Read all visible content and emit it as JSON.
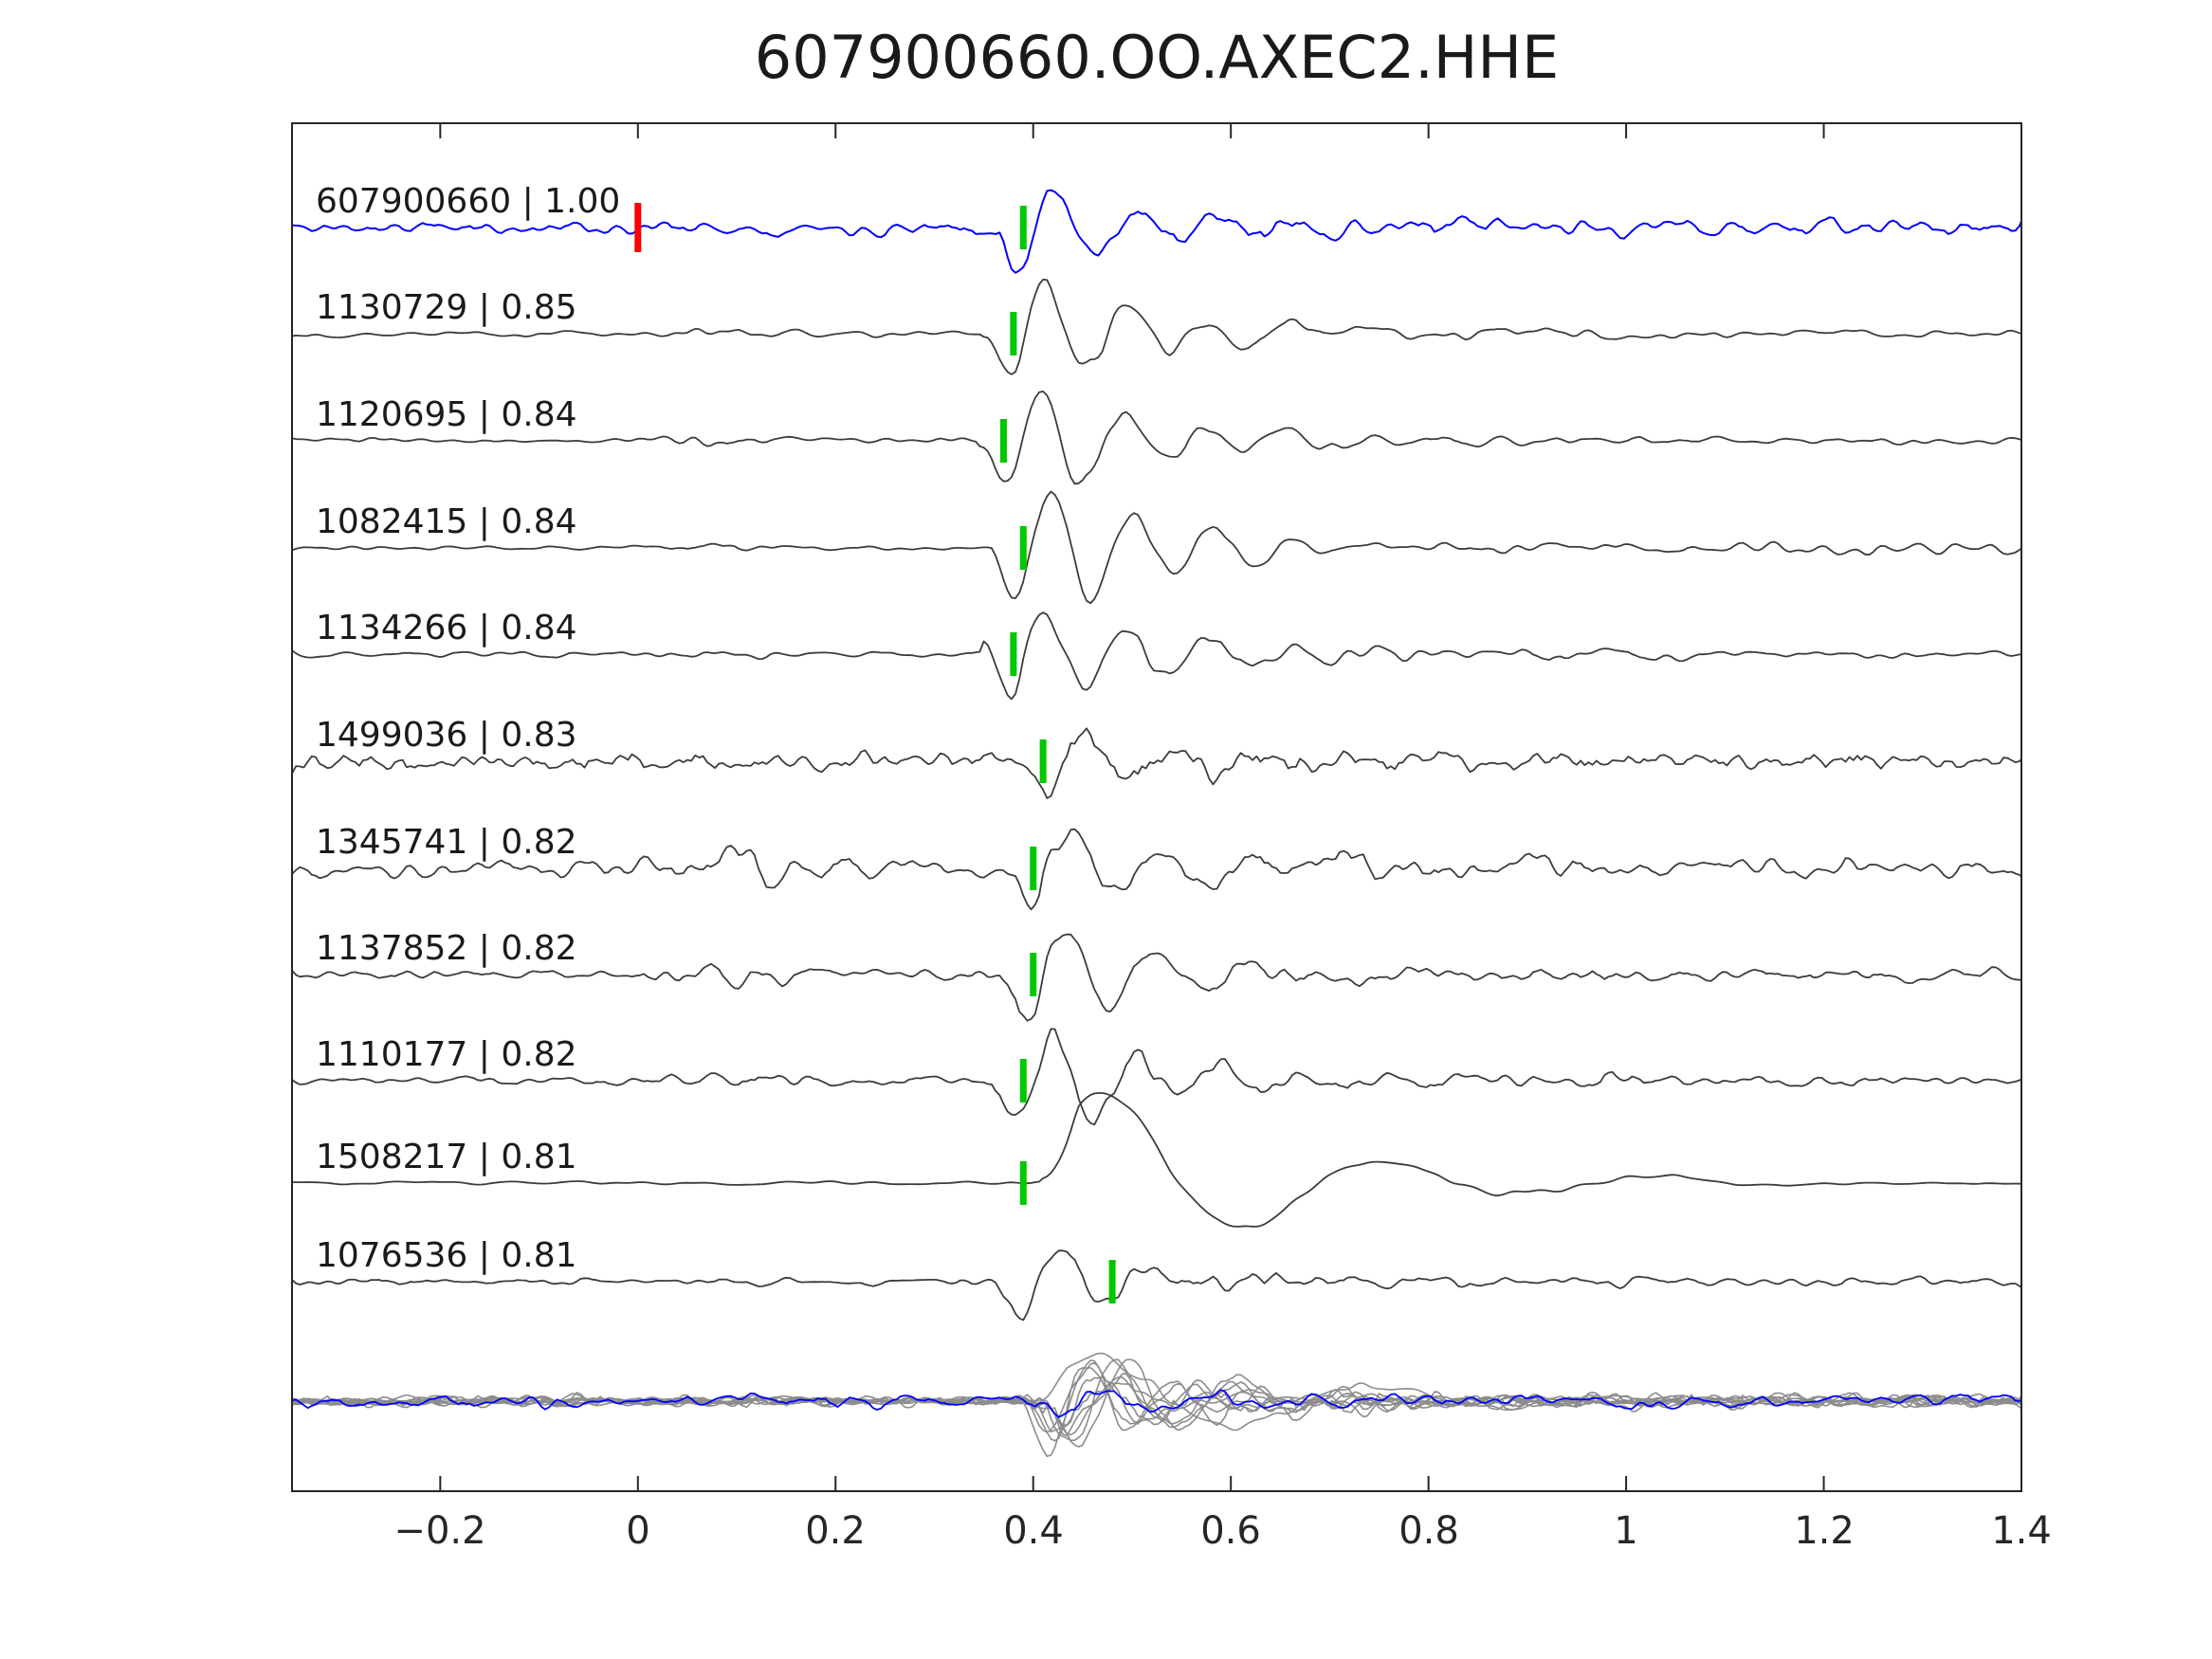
{
  "colors": {
    "background": "#ffffff",
    "axis": "#262626",
    "text": "#1a1a1a",
    "detection_trace": "#0000ff",
    "template_trace": "#3c3c3c",
    "pick_marker": "#00c800",
    "detection_origin_pick_marker": "#ff0000",
    "overlay_gray": "#8c8c8c",
    "overlay_blue": "#0000ff"
  },
  "chart_data": {
    "type": "line",
    "title": "607900660.OO.AXEC2.HHE",
    "xlabel": "",
    "ylabel": "",
    "xlim": [
      -0.35,
      1.4
    ],
    "grid": false,
    "legend": false,
    "x_ticks": [
      -0.2,
      0,
      0.2,
      0.4,
      0.6,
      0.8,
      1,
      1.2,
      1.4
    ],
    "x_tick_labels": [
      "−0.2",
      "0",
      "0.2",
      "0.4",
      "0.6",
      "0.8",
      "1",
      "1.2",
      "1.4"
    ],
    "traces": [
      {
        "id": "607900660",
        "correlation": 1.0,
        "label": "607900660 | 1.00",
        "role": "detection",
        "color": "#0000ff",
        "pick_time": 0.39,
        "pick_color": "#00c800",
        "origin_pick_time": 0.0,
        "origin_pick_color": "#ff0000",
        "waveform": {
          "seed": 11,
          "noise": 11,
          "smooth": 2,
          "coda": 7,
          "arrival": {
            "t": 0.36,
            "amp": 85,
            "f": 12,
            "decay": 0.1
          },
          "bursts": []
        }
      },
      {
        "id": "1130729",
        "correlation": 0.85,
        "label": "1130729 | 0.85",
        "role": "template",
        "color": "#3c3c3c",
        "pick_time": 0.38,
        "pick_color": "#00c800",
        "waveform": {
          "seed": 22,
          "noise": 4,
          "smooth": 3,
          "coda": 14,
          "arrival": {
            "t": 0.35,
            "amp": 82,
            "f": 12,
            "decay": 0.13
          },
          "bursts": [
            {
              "t": 0.09,
              "amp": 6,
              "w": 0.04
            }
          ]
        }
      },
      {
        "id": "1120695",
        "correlation": 0.84,
        "label": "1120695 | 0.84",
        "role": "template",
        "color": "#3c3c3c",
        "pick_time": 0.37,
        "pick_color": "#00c800",
        "waveform": {
          "seed": 33,
          "noise": 3.5,
          "smooth": 3,
          "coda": 12,
          "arrival": {
            "t": 0.345,
            "amp": 86,
            "f": 12,
            "decay": 0.13
          },
          "bursts": [
            {
              "t": 0.08,
              "amp": 4,
              "w": 0.04
            }
          ]
        }
      },
      {
        "id": "1082415",
        "correlation": 0.84,
        "label": "1082415 | 0.84",
        "role": "template",
        "color": "#3c3c3c",
        "pick_time": 0.39,
        "pick_color": "#00c800",
        "waveform": {
          "seed": 44,
          "noise": 4,
          "smooth": 3,
          "coda": 15,
          "arrival": {
            "t": 0.355,
            "amp": 88,
            "f": 12,
            "decay": 0.14
          },
          "bursts": [
            {
              "t": 0.08,
              "amp": 6,
              "w": 0.05
            },
            {
              "t": 1.27,
              "amp": 9,
              "w": 0.1
            }
          ]
        }
      },
      {
        "id": "1134266",
        "correlation": 0.84,
        "label": "1134266 | 0.84",
        "role": "template",
        "color": "#3c3c3c",
        "pick_time": 0.38,
        "pick_color": "#00c800",
        "waveform": {
          "seed": 55,
          "noise": 4,
          "smooth": 3,
          "coda": 13,
          "arrival": {
            "t": 0.35,
            "amp": 82,
            "f": 12,
            "decay": 0.13
          },
          "bursts": [
            {
              "t": 0.08,
              "amp": 5,
              "w": 0.04
            }
          ]
        }
      },
      {
        "id": "1499036",
        "correlation": 0.83,
        "label": "1499036 | 0.83",
        "role": "template",
        "color": "#3c3c3c",
        "pick_time": 0.41,
        "pick_color": "#00c800",
        "waveform": {
          "seed": 66,
          "noise": 13,
          "smooth": 1,
          "coda": 9,
          "arrival": {
            "t": 0.385,
            "amp": 55,
            "f": 11,
            "decay": 0.12
          },
          "bursts": [
            {
              "t": 0.05,
              "amp": 6,
              "w": 0.08
            }
          ]
        }
      },
      {
        "id": "1345741",
        "correlation": 0.82,
        "label": "1345741 | 0.82",
        "role": "template",
        "color": "#3c3c3c",
        "pick_time": 0.4,
        "pick_color": "#00c800",
        "waveform": {
          "seed": 77,
          "noise": 12,
          "smooth": 2,
          "coda": 12,
          "arrival": {
            "t": 0.37,
            "amp": 75,
            "f": 11,
            "decay": 0.13
          },
          "bursts": [
            {
              "t": 0.09,
              "amp": 12,
              "w": 0.06
            }
          ]
        }
      },
      {
        "id": "1137852",
        "correlation": 0.82,
        "label": "1137852 | 0.82",
        "role": "template",
        "color": "#3c3c3c",
        "pick_time": 0.4,
        "pick_color": "#00c800",
        "waveform": {
          "seed": 88,
          "noise": 7,
          "smooth": 2,
          "coda": 13,
          "arrival": {
            "t": 0.365,
            "amp": 76,
            "f": 11,
            "decay": 0.13
          },
          "bursts": [
            {
              "t": 0.1,
              "amp": 11,
              "w": 0.05
            }
          ]
        }
      },
      {
        "id": "1110177",
        "correlation": 0.82,
        "label": "1110177 | 0.82",
        "role": "template",
        "color": "#3c3c3c",
        "pick_time": 0.39,
        "pick_color": "#00c800",
        "waveform": {
          "seed": 99,
          "noise": 6,
          "smooth": 2,
          "coda": 11,
          "arrival": {
            "t": 0.36,
            "amp": 78,
            "f": 12,
            "decay": 0.12
          },
          "bursts": [
            {
              "t": 0.08,
              "amp": 4,
              "w": 0.05
            }
          ]
        }
      },
      {
        "id": "1508217",
        "correlation": 0.81,
        "label": "1508217 | 0.81",
        "role": "template",
        "color": "#3c3c3c",
        "pick_time": 0.39,
        "pick_color": "#00c800",
        "waveform": {
          "seed": 110,
          "noise": 2.5,
          "smooth": 6,
          "coda": 4,
          "arrival": {
            "t": 0.41,
            "amp": -130,
            "f": 3.6,
            "decay": 0.2
          },
          "bursts": []
        }
      },
      {
        "id": "1076536",
        "correlation": 0.81,
        "label": "1076536 | 0.81",
        "role": "template",
        "color": "#3c3c3c",
        "pick_time": 0.48,
        "pick_color": "#00c800",
        "waveform": {
          "seed": 121,
          "noise": 7,
          "smooth": 2,
          "coda": 12,
          "arrival": {
            "t": 0.36,
            "amp": 70,
            "f": 11,
            "decay": 0.1
          },
          "bursts": [
            {
              "t": 0.62,
              "amp": 14,
              "w": 0.05
            }
          ]
        }
      }
    ],
    "overlay": {
      "gray_color": "#8c8c8c",
      "blue_color": "#0000ff",
      "gray_traces": [
        {
          "seed": 201,
          "noise": 8,
          "smooth": 2,
          "coda": 9,
          "arrival": {
            "t": 0.395,
            "amp": 45,
            "f": 10,
            "decay": 0.12
          },
          "bursts": []
        },
        {
          "seed": 207,
          "noise": 7,
          "smooth": 2,
          "coda": 8,
          "arrival": {
            "t": 0.405,
            "amp": 70,
            "f": 9,
            "decay": 0.14
          },
          "bursts": []
        },
        {
          "seed": 213,
          "noise": 8,
          "smooth": 2,
          "coda": 10,
          "arrival": {
            "t": 0.39,
            "amp": 55,
            "f": 11,
            "decay": 0.12
          },
          "bursts": []
        },
        {
          "seed": 219,
          "noise": 6,
          "smooth": 3,
          "coda": 7,
          "arrival": {
            "t": 0.4,
            "amp": 35,
            "f": 8,
            "decay": 0.15
          },
          "bursts": []
        },
        {
          "seed": 225,
          "noise": 8,
          "smooth": 2,
          "coda": 9,
          "arrival": {
            "t": 0.385,
            "amp": 78,
            "f": 9.5,
            "decay": 0.12
          },
          "bursts": []
        },
        {
          "seed": 231,
          "noise": 5,
          "smooth": 4,
          "coda": 5,
          "arrival": {
            "t": 0.4,
            "amp": -60,
            "f": 3.6,
            "decay": 0.25
          },
          "bursts": []
        },
        {
          "seed": 237,
          "noise": 9,
          "smooth": 1,
          "coda": 10,
          "arrival": {
            "t": 0.41,
            "amp": 40,
            "f": 10,
            "decay": 0.1
          },
          "bursts": []
        },
        {
          "seed": 243,
          "noise": 7,
          "smooth": 2,
          "coda": 9,
          "arrival": {
            "t": 0.395,
            "amp": 62,
            "f": 12,
            "decay": 0.12
          },
          "bursts": []
        },
        {
          "seed": 249,
          "noise": 8,
          "smooth": 2,
          "coda": 8,
          "arrival": {
            "t": 0.4,
            "amp": 50,
            "f": 8.5,
            "decay": 0.13
          },
          "bursts": []
        },
        {
          "seed": 255,
          "noise": 6,
          "smooth": 2,
          "coda": 7,
          "arrival": {
            "t": 0.415,
            "amp": 72,
            "f": 9,
            "decay": 0.16
          },
          "bursts": []
        }
      ],
      "blue_trace": {
        "seed": 301,
        "noise": 9,
        "smooth": 2,
        "coda": 5,
        "arrival": {
          "t": 0.4,
          "amp": 26,
          "f": 10,
          "decay": 0.1
        },
        "bursts": []
      }
    }
  }
}
